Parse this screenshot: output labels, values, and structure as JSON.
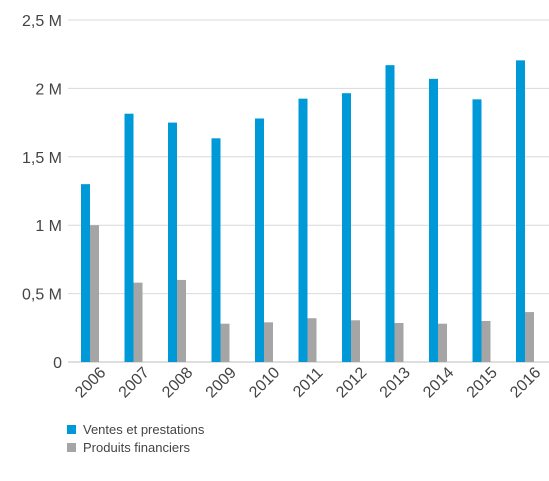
{
  "chart_data": {
    "type": "bar",
    "categories": [
      "2006",
      "2007",
      "2008",
      "2009",
      "2010",
      "2011",
      "2012",
      "2013",
      "2014",
      "2015",
      "2016"
    ],
    "series": [
      {
        "name": "Ventes et prestations",
        "color": "#0099d8",
        "values": [
          1300000,
          1815000,
          1750000,
          1635000,
          1780000,
          1925000,
          1965000,
          2170000,
          2070000,
          1920000,
          2205000
        ]
      },
      {
        "name": "Produits financiers",
        "color": "#a5a5a5",
        "values": [
          1000000,
          580000,
          600000,
          280000,
          290000,
          320000,
          305000,
          285000,
          280000,
          300000,
          365000
        ]
      }
    ],
    "ylim": [
      0,
      2500000
    ],
    "yticks": [
      0,
      500000,
      1000000,
      1500000,
      2000000,
      2500000
    ],
    "ytick_labels": [
      "0",
      "0,5 M",
      "1 M",
      "1,5 M",
      "2 M",
      "2,5 M"
    ],
    "grid": true,
    "legend_position": "bottom-left",
    "title": "",
    "xlabel": "",
    "ylabel": ""
  }
}
